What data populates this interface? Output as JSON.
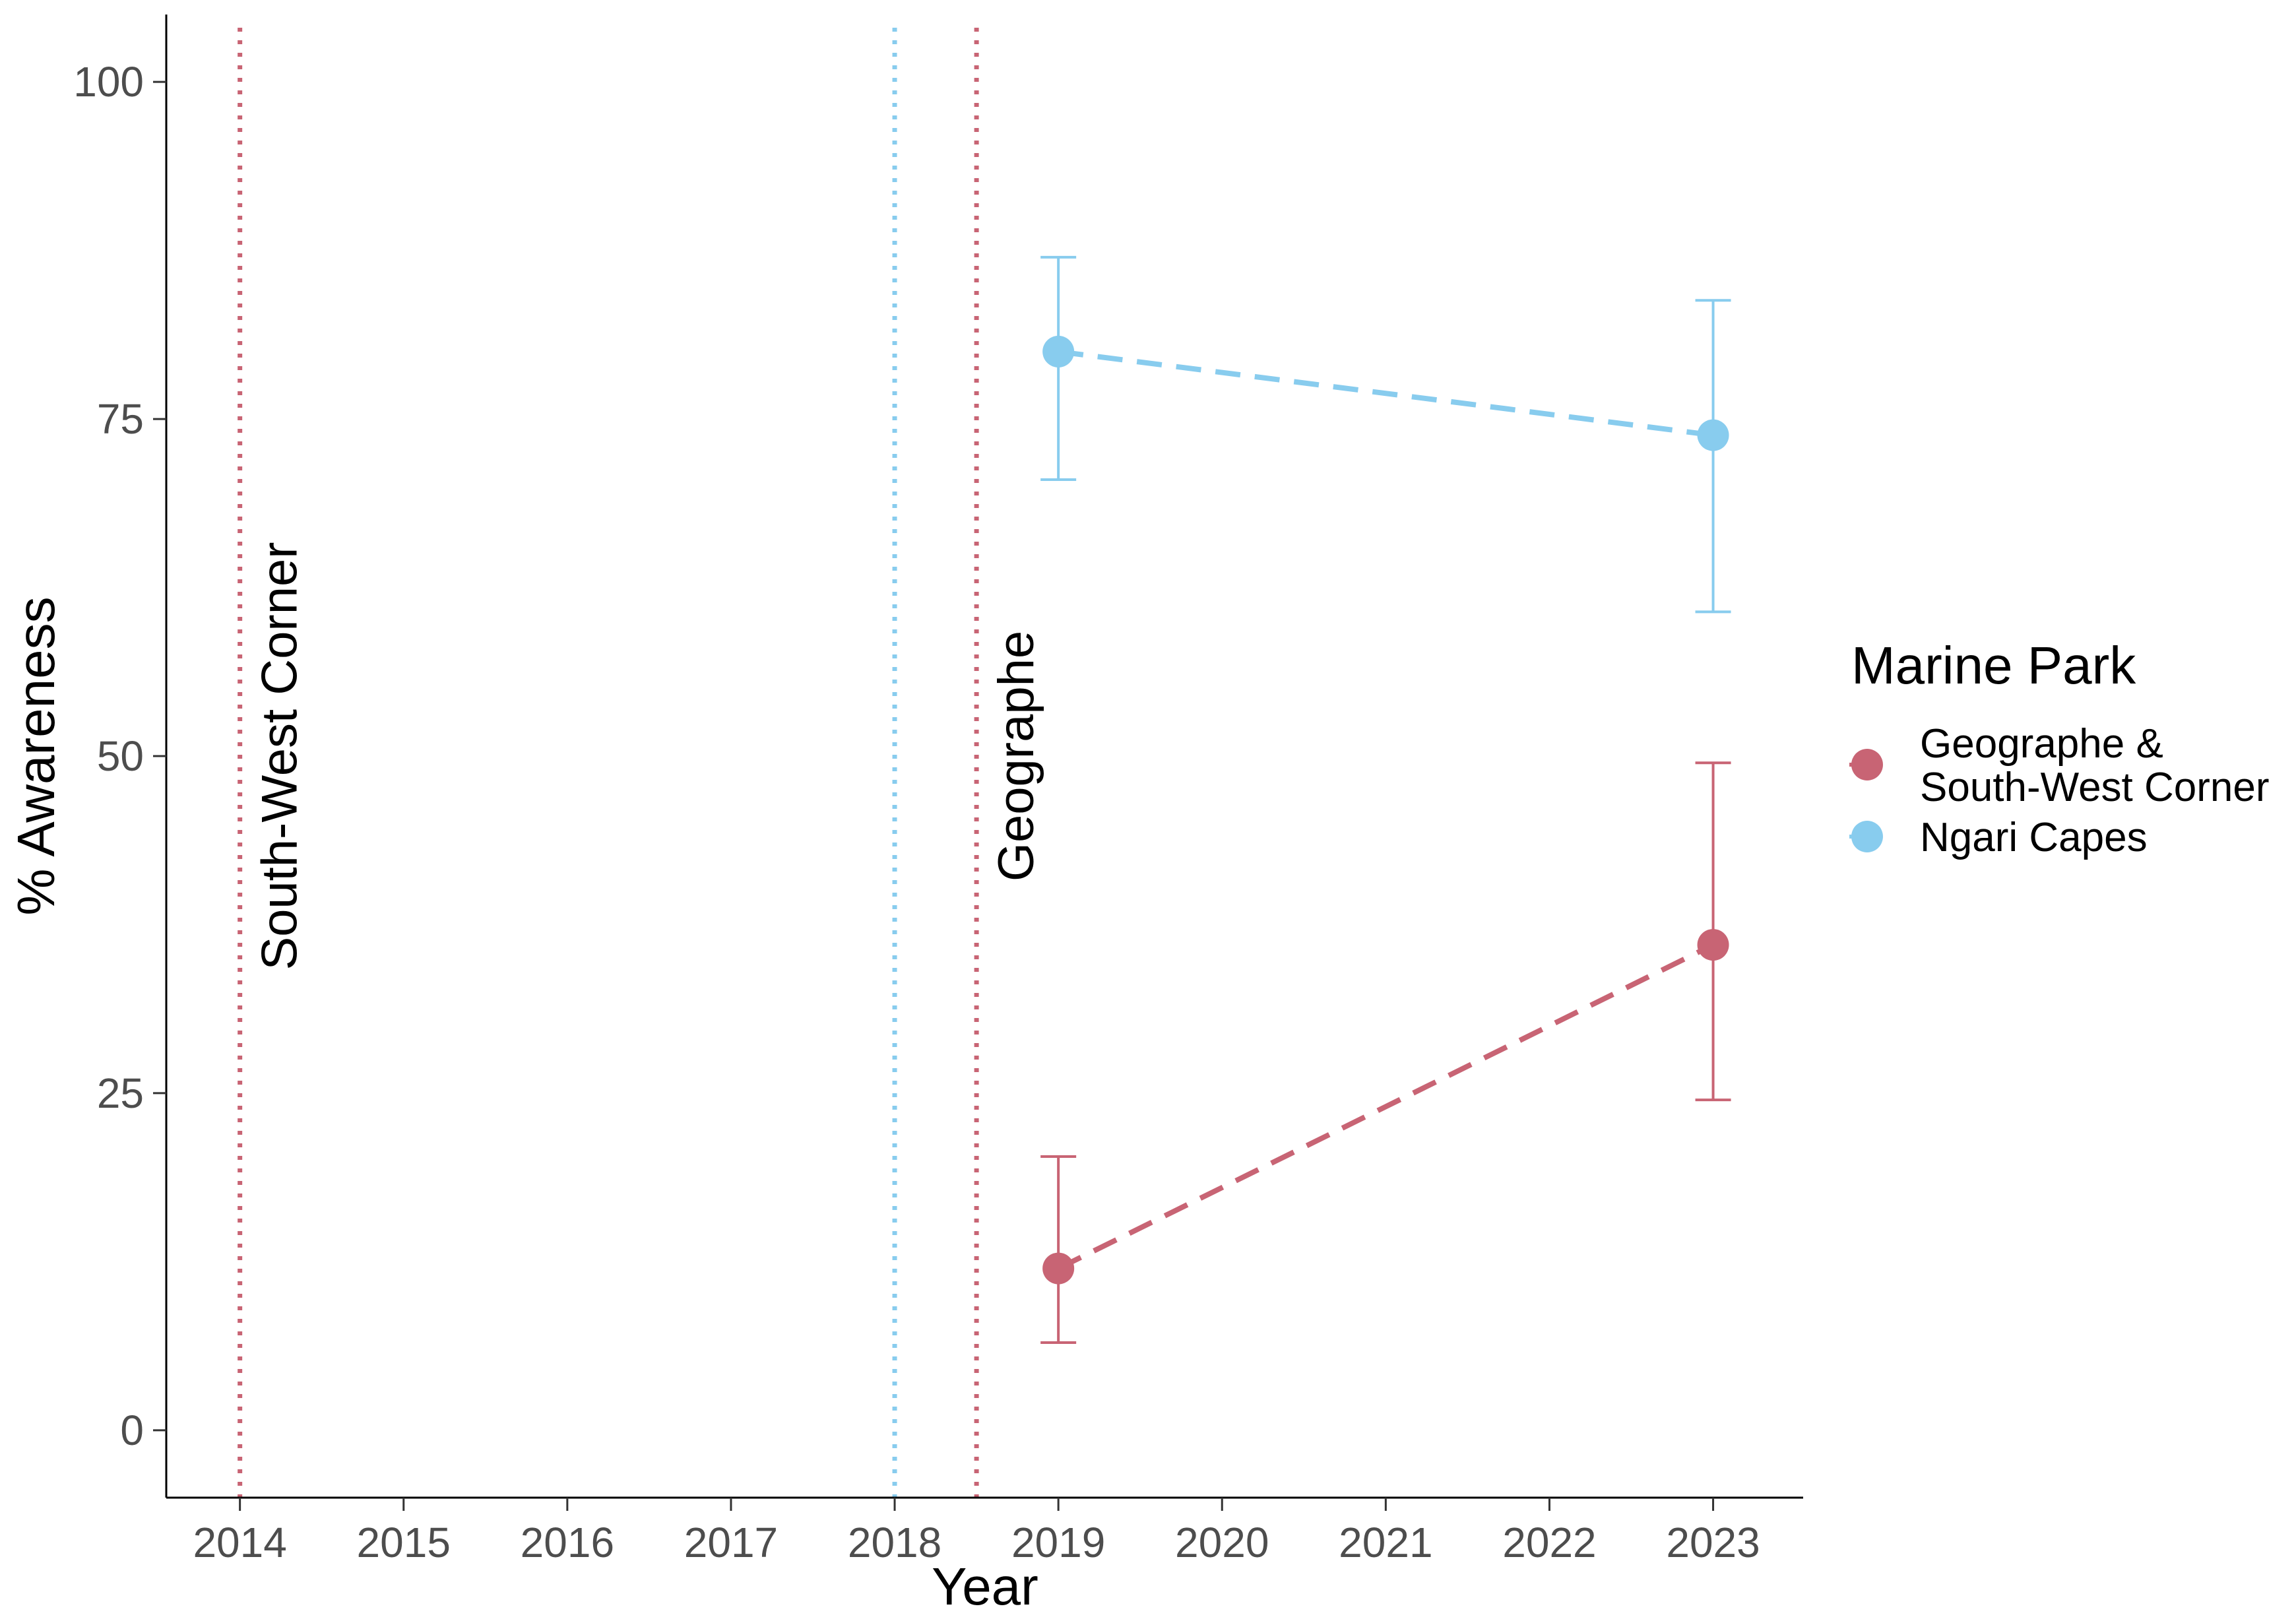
{
  "chart_data": {
    "type": "line",
    "title": "",
    "xlabel": "Year",
    "ylabel": "% Awareness",
    "xlim": [
      2013.55,
      2023.55
    ],
    "ylim": [
      -5,
      105
    ],
    "x_ticks": [
      2014,
      2015,
      2016,
      2017,
      2018,
      2019,
      2020,
      2021,
      2022,
      2023
    ],
    "y_ticks": [
      0,
      25,
      50,
      75,
      100
    ],
    "grid": false,
    "legend": {
      "title": "Marine Park",
      "position": "right",
      "entries": [
        {
          "label_lines": [
            "Geographe &",
            "South-West Corner"
          ],
          "color": "#C86474"
        },
        {
          "label_lines": [
            "Ngari Capes"
          ],
          "color": "#88CCEE"
        }
      ]
    },
    "series": [
      {
        "name": "Geographe & South-West Corner",
        "color": "#C86474",
        "line_style": "dashed",
        "points": [
          {
            "x": 2019,
            "y": 12,
            "ymin": 6.5,
            "ymax": 20.3
          },
          {
            "x": 2023,
            "y": 36,
            "ymin": 24.5,
            "ymax": 49.5
          }
        ]
      },
      {
        "name": "Ngari Capes",
        "color": "#88CCEE",
        "line_style": "dashed",
        "points": [
          {
            "x": 2019,
            "y": 80,
            "ymin": 70.5,
            "ymax": 87
          },
          {
            "x": 2023,
            "y": 73.8,
            "ymin": 60.7,
            "ymax": 83.8
          }
        ]
      }
    ],
    "reference_lines": [
      {
        "x": 2014,
        "color": "#C86474",
        "style": "dotted",
        "label": "South-West Corner"
      },
      {
        "x": 2018,
        "color": "#88CCEE",
        "style": "dotted",
        "label": ""
      },
      {
        "x": 2018.5,
        "color": "#C86474",
        "style": "dotted",
        "label": "Geographe"
      }
    ]
  }
}
